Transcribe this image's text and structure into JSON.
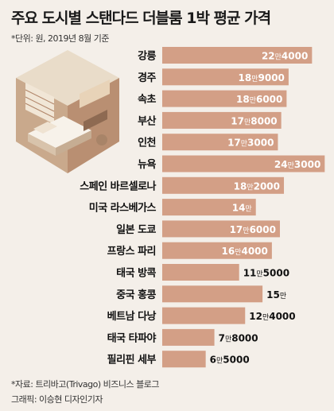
{
  "title": "주요 도시별 스탠다드 더블룸 1박 평균 가격",
  "unit_note": "*단위: 원, 2019년 8월 기준",
  "source": "*자료: 트리바고(Trivago) 비즈니스 블로그",
  "credit": "그래픽: 이승현 디자인기자",
  "colors": {
    "bar": "#d39f86",
    "text_on_bar": "#ffffff",
    "text_off_bar": "#111111"
  },
  "chart_data": {
    "type": "bar",
    "orientation": "horizontal",
    "categories": [
      "강릉",
      "경주",
      "속초",
      "부산",
      "인천",
      "뉴욕",
      "스페인 바르셀로나",
      "미국 라스베가스",
      "일본 도쿄",
      "프랑스 파리",
      "태국 방콕",
      "중국 홍콩",
      "베트남 다낭",
      "태국 타파야",
      "필리핀 세부"
    ],
    "values": [
      224000,
      189000,
      186000,
      178000,
      173000,
      243000,
      182000,
      140000,
      176000,
      164000,
      115000,
      150000,
      124000,
      78000,
      65000
    ],
    "labels": [
      [
        "22",
        "4000"
      ],
      [
        "18",
        "9000"
      ],
      [
        "18",
        "6000"
      ],
      [
        "17",
        "8000"
      ],
      [
        "17",
        "3000"
      ],
      [
        "24",
        "3000"
      ],
      [
        "18",
        "2000"
      ],
      [
        "14",
        ""
      ],
      [
        "17",
        "6000"
      ],
      [
        "16",
        "4000"
      ],
      [
        "11",
        "5000"
      ],
      [
        "15",
        ""
      ],
      [
        "12",
        "4000"
      ],
      [
        "7",
        "8000"
      ],
      [
        "6",
        "5000"
      ]
    ],
    "label_unit": "만",
    "label_inside": [
      true,
      true,
      true,
      true,
      true,
      true,
      true,
      true,
      true,
      true,
      false,
      false,
      false,
      false,
      false
    ]
  }
}
